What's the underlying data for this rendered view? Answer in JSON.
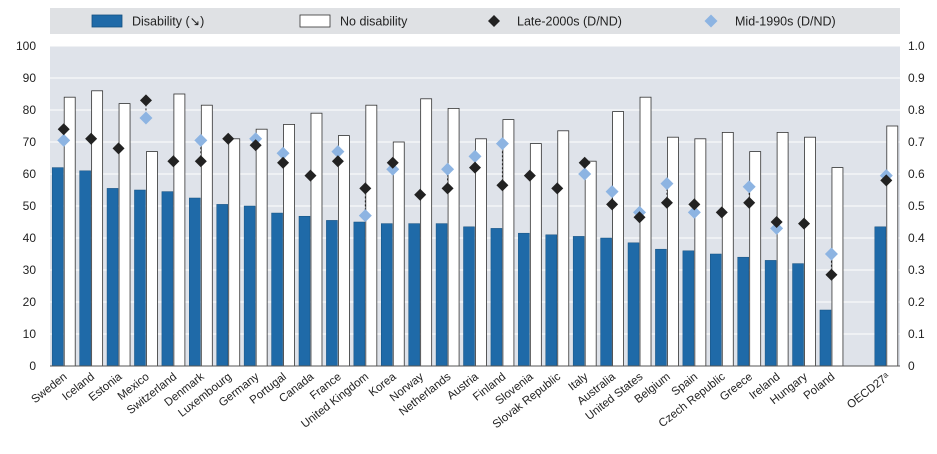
{
  "chart_data": {
    "type": "bar",
    "categories": [
      "Sweden",
      "Iceland",
      "Estonia",
      "Mexico",
      "Switzerland",
      "Denmark",
      "Luxembourg",
      "Germany",
      "Portugal",
      "Canada",
      "France",
      "United Kingdom",
      "Korea",
      "Norway",
      "Netherlands",
      "Austria",
      "Finland",
      "Slovenia",
      "Slovak Republic",
      "Italy",
      "Australia",
      "United States",
      "Belgium",
      "Spain",
      "Czech Republic",
      "Greece",
      "Ireland",
      "Hungary",
      "Poland",
      "",
      "OECD27ᵃ"
    ],
    "series": [
      {
        "name": "Disability (↘)",
        "kind": "bar",
        "color": "#1f6aa8",
        "values": [
          62,
          61,
          55.5,
          55,
          54.5,
          52.5,
          50.5,
          50,
          47.8,
          46.8,
          45.5,
          45,
          44.5,
          44.5,
          44.5,
          43.5,
          43,
          41.5,
          41,
          40.5,
          40,
          38.5,
          36.5,
          36,
          35,
          34,
          33,
          32,
          17.5,
          null,
          43.5
        ]
      },
      {
        "name": "No disability",
        "kind": "bar",
        "color": "#ffffff",
        "values": [
          84,
          86,
          82,
          67,
          85,
          81.5,
          71,
          74,
          75.5,
          79,
          72,
          81.5,
          70,
          83.5,
          80.5,
          71,
          77,
          69.5,
          73.5,
          64,
          79.5,
          84,
          71.5,
          71,
          73,
          67,
          73,
          71.5,
          62,
          null,
          75
        ]
      },
      {
        "name": "Late-2000s (D/ND)",
        "kind": "point",
        "axis": "right",
        "color": "#222222",
        "values": [
          0.74,
          0.71,
          0.68,
          0.83,
          0.64,
          0.64,
          0.71,
          0.69,
          0.635,
          0.595,
          0.64,
          0.555,
          0.635,
          0.535,
          0.555,
          0.62,
          0.565,
          0.595,
          0.555,
          0.635,
          0.505,
          0.465,
          0.51,
          0.505,
          0.48,
          0.51,
          0.45,
          0.445,
          0.285,
          null,
          0.58
        ]
      },
      {
        "name": "Mid-1990s (D/ND)",
        "kind": "point",
        "axis": "right",
        "color": "#8db4e2",
        "values": [
          0.705,
          null,
          null,
          0.775,
          null,
          0.705,
          null,
          0.71,
          0.665,
          null,
          0.67,
          0.47,
          0.615,
          null,
          0.615,
          0.655,
          0.695,
          null,
          null,
          0.6,
          0.545,
          0.48,
          0.57,
          0.48,
          null,
          0.56,
          0.43,
          null,
          0.35,
          null,
          0.595
        ]
      }
    ],
    "ylim": [
      0,
      100
    ],
    "y2lim": [
      0,
      1.0
    ],
    "yticks": [
      "0",
      "10",
      "20",
      "30",
      "40",
      "50",
      "60",
      "70",
      "80",
      "90",
      "100"
    ],
    "y2ticks": [
      "0",
      "0.1",
      "0.2",
      "0.3",
      "0.4",
      "0.5",
      "0.6",
      "0.7",
      "0.8",
      "0.9",
      "1.0"
    ],
    "grid": true,
    "legend_position": "top"
  }
}
